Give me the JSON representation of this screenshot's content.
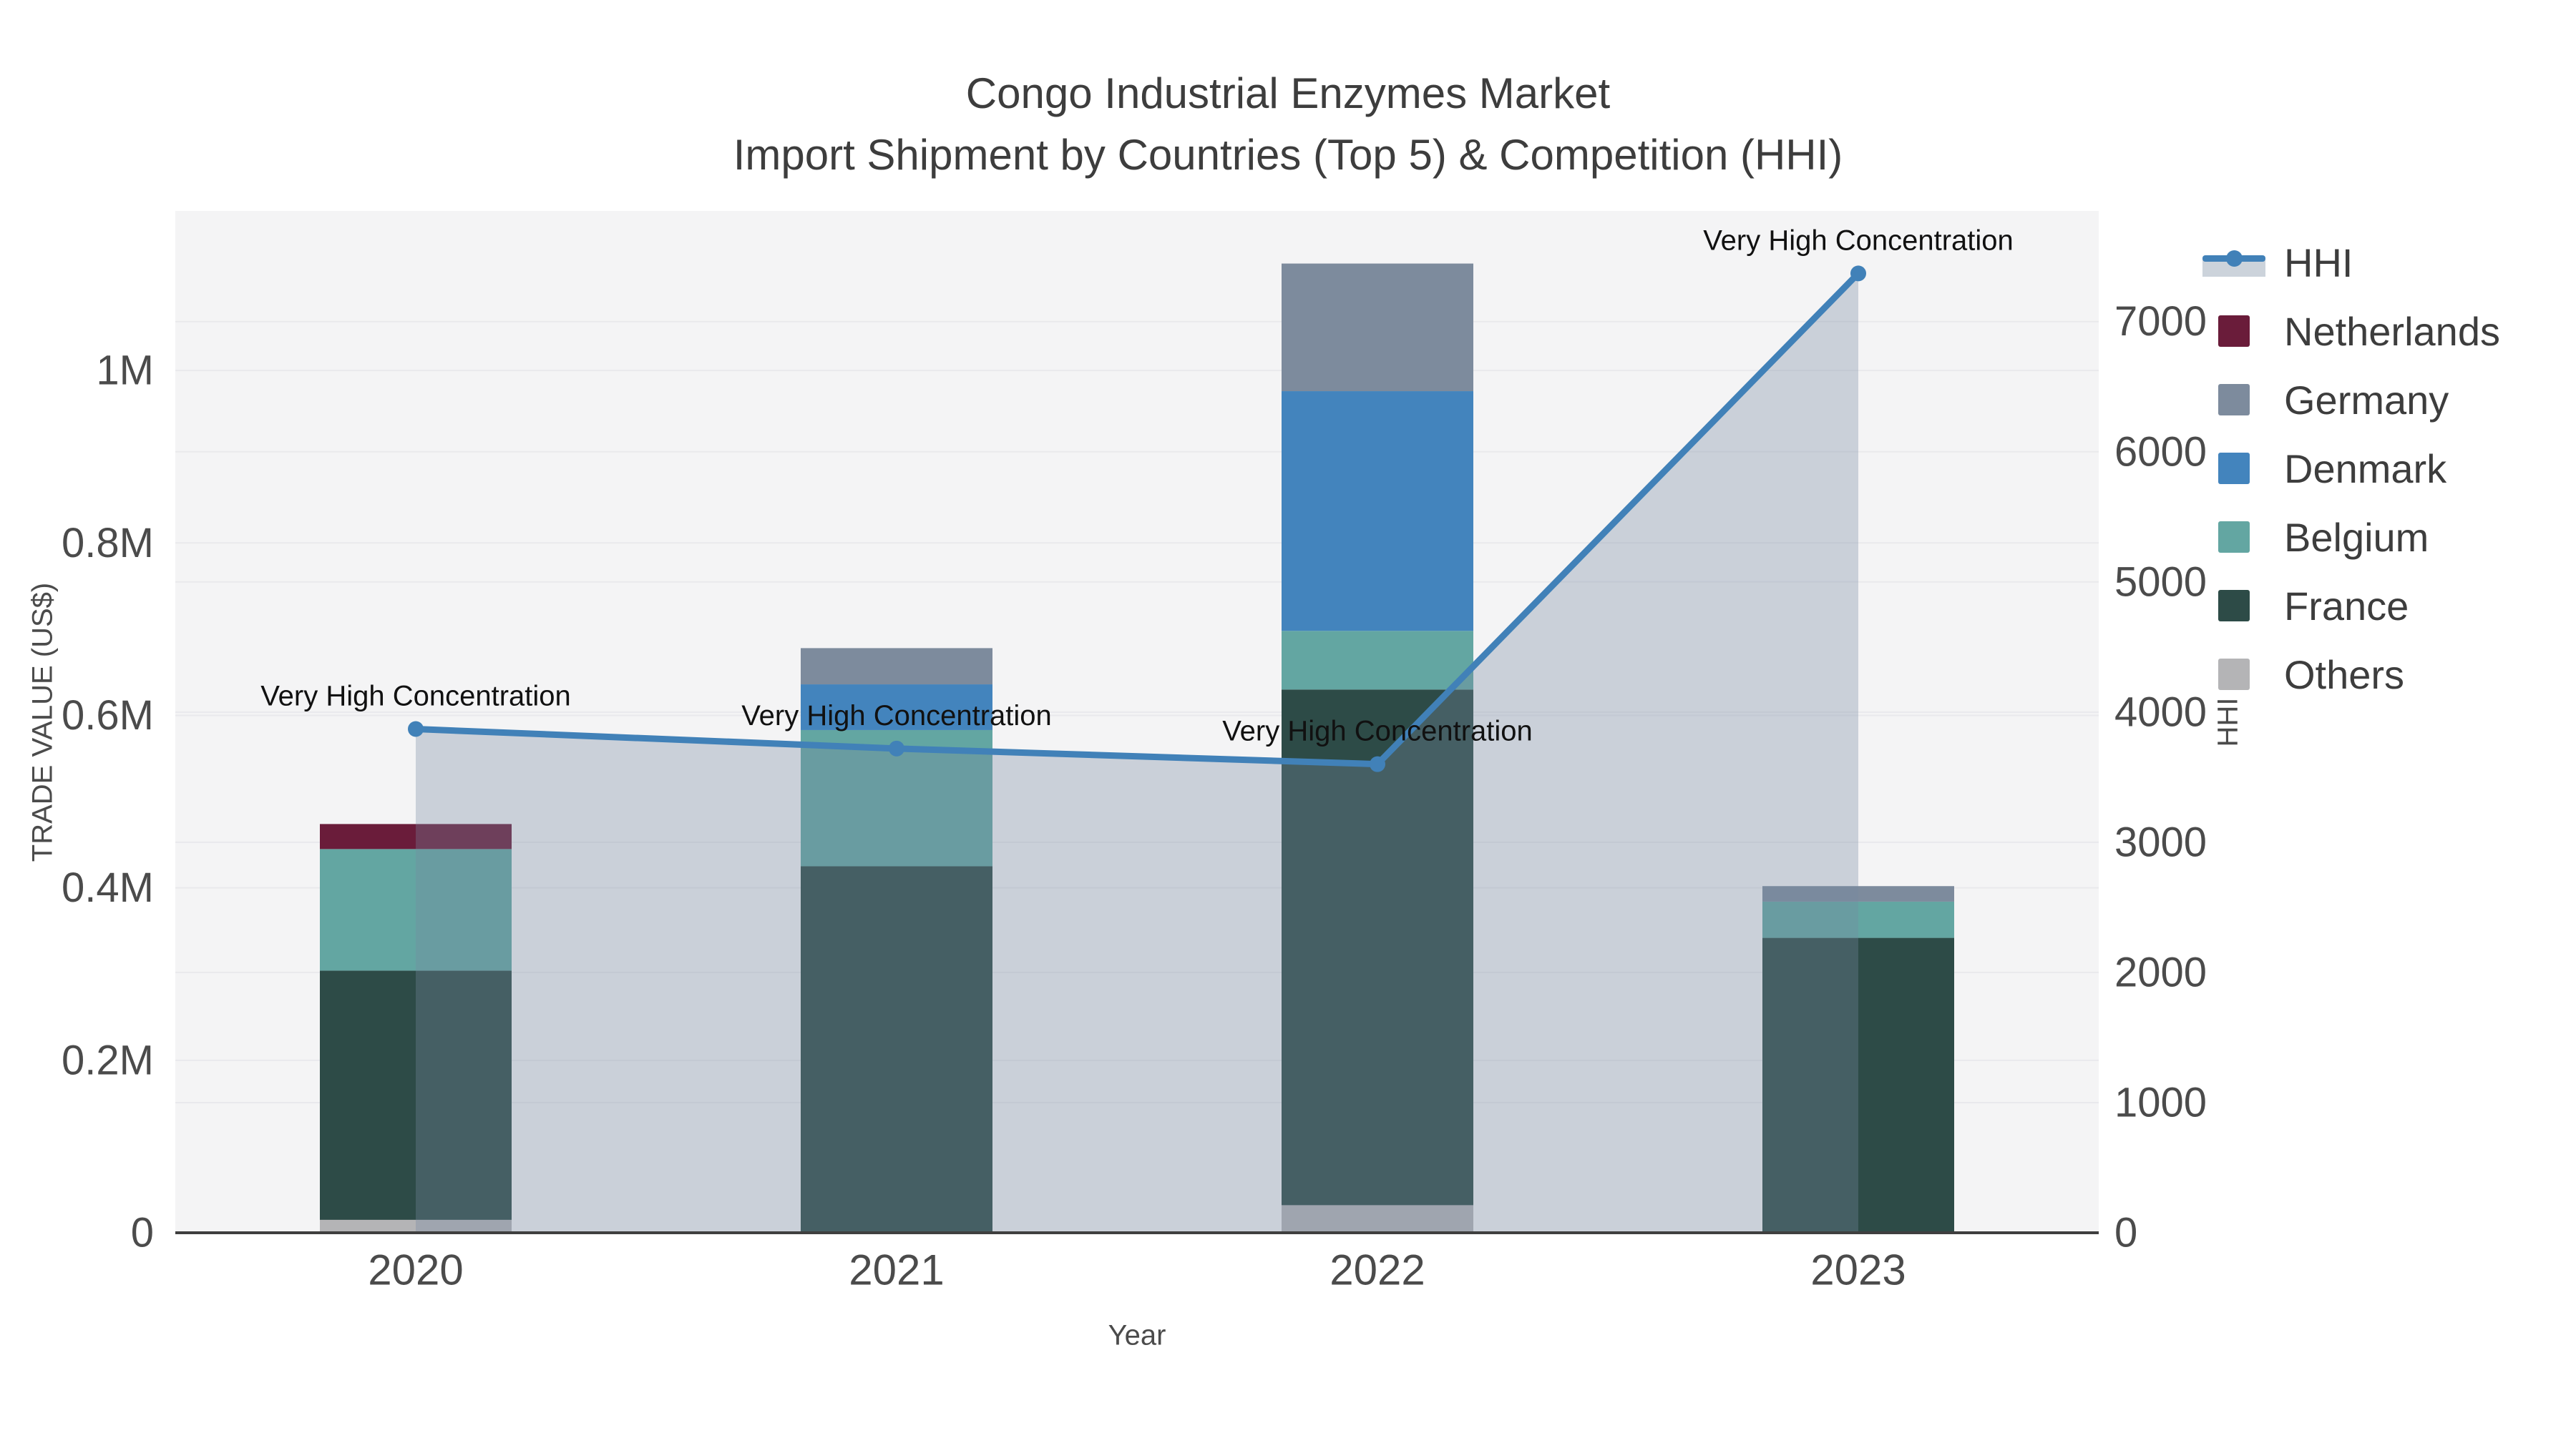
{
  "figure": {
    "title_line1": "Congo Industrial Enzymes Market",
    "title_line2": "Import Shipment by Countries (Top 5) & Competition (HHI)"
  },
  "chart_data": {
    "type": "combo_stacked_bar_plus_line",
    "categories": [
      "2020",
      "2021",
      "2022",
      "2023"
    ],
    "x_axis": {
      "title": "Year"
    },
    "left_axis": {
      "title": "TRADE VALUE (US$)",
      "range": [
        0,
        1185000
      ],
      "grid": true,
      "ticks": [
        {
          "value": 0,
          "label": "0"
        },
        {
          "value": 200000,
          "label": "0.2M"
        },
        {
          "value": 400000,
          "label": "0.4M"
        },
        {
          "value": 600000,
          "label": "0.6M"
        },
        {
          "value": 800000,
          "label": "0.8M"
        },
        {
          "value": 1000000,
          "label": "1M"
        }
      ]
    },
    "right_axis": {
      "title": "HHI",
      "range": [
        0,
        7850
      ],
      "grid": true,
      "ticks": [
        {
          "value": 0,
          "label": "0"
        },
        {
          "value": 1000,
          "label": "1000"
        },
        {
          "value": 2000,
          "label": "2000"
        },
        {
          "value": 3000,
          "label": "3000"
        },
        {
          "value": 4000,
          "label": "4000"
        },
        {
          "value": 5000,
          "label": "5000"
        },
        {
          "value": 6000,
          "label": "6000"
        },
        {
          "value": 7000,
          "label": "7000"
        }
      ]
    },
    "bar_series_bottom_to_top": [
      {
        "name": "Others",
        "color": "#b4b4b6",
        "values": [
          15000,
          0,
          32000,
          0
        ]
      },
      {
        "name": "France",
        "color": "#2d4b47",
        "values": [
          289000,
          425000,
          598000,
          342000
        ]
      },
      {
        "name": "Belgium",
        "color": "#63a6a2",
        "values": [
          141000,
          158000,
          68000,
          42000
        ]
      },
      {
        "name": "Denmark",
        "color": "#4384bd",
        "values": [
          0,
          53000,
          278000,
          0
        ]
      },
      {
        "name": "Germany",
        "color": "#7d8b9d",
        "values": [
          0,
          42000,
          148000,
          18000
        ]
      },
      {
        "name": "Netherlands",
        "color": "#6a1c3a",
        "values": [
          29000,
          0,
          0,
          0
        ]
      }
    ],
    "bar_totals": [
      474000,
      678000,
      1124000,
      402000
    ],
    "line_series": {
      "name": "HHI",
      "color": "#4181b8",
      "area_fill": "rgba(117,136,161,0.33)",
      "values": [
        3870,
        3720,
        3600,
        7370
      ]
    },
    "annotations": [
      {
        "x": "2020",
        "text": "Very High Concentration"
      },
      {
        "x": "2021",
        "text": "Very High Concentration"
      },
      {
        "x": "2022",
        "text": "Very High Concentration"
      },
      {
        "x": "2023",
        "text": "Very High Concentration"
      }
    ],
    "plot_bg": "#f4f4f5",
    "grid_color": "#e9e9ec",
    "zeroline_color": "#3f3f3f",
    "tick_color": "#4b4b4b",
    "annotation_color": "#111111"
  },
  "legend": {
    "items": [
      {
        "label": "HHI",
        "type": "line",
        "color": "#4181b8"
      },
      {
        "label": "Netherlands",
        "type": "swatch",
        "color": "#6a1c3a"
      },
      {
        "label": "Germany",
        "type": "swatch",
        "color": "#7d8b9d"
      },
      {
        "label": "Denmark",
        "type": "swatch",
        "color": "#4384bd"
      },
      {
        "label": "Belgium",
        "type": "swatch",
        "color": "#63a6a2"
      },
      {
        "label": "France",
        "type": "swatch",
        "color": "#2d4b47"
      },
      {
        "label": "Others",
        "type": "swatch",
        "color": "#b4b4b6"
      }
    ]
  }
}
